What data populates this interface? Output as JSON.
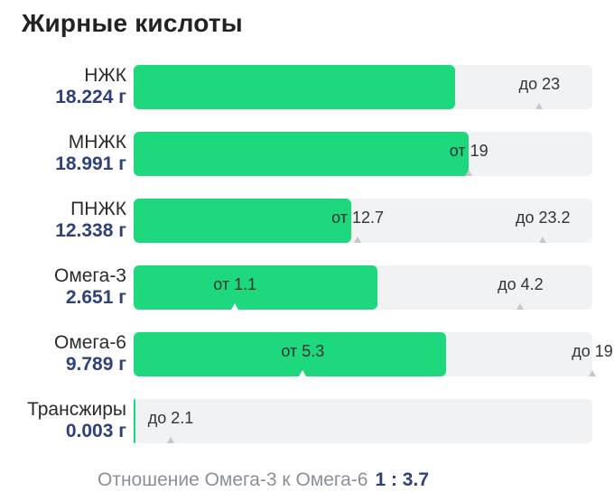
{
  "title": "Жирные кислоты",
  "colors": {
    "fill": "#1ed87e",
    "track": "#f1f2f4",
    "value_text": "#2f4178",
    "label_text": "#2b2b2b",
    "muted_text": "#8a8f98"
  },
  "scale_max": 26,
  "rows": [
    {
      "label": "НЖК",
      "value": "18.224 г",
      "amount": 18.224,
      "markers": [
        {
          "text": "до 23",
          "value": 23
        }
      ]
    },
    {
      "label": "МНЖК",
      "value": "18.991 г",
      "amount": 18.991,
      "markers": [
        {
          "text": "от 19",
          "value": 19
        }
      ]
    },
    {
      "label": "ПНЖК",
      "value": "12.338 г",
      "amount": 12.338,
      "markers": [
        {
          "text": "от 12.7",
          "value": 12.7
        },
        {
          "text": "до 23.2",
          "value": 23.2
        }
      ]
    },
    {
      "label": "Омега-3",
      "value": "2.651 г",
      "amount": 2.651,
      "scale_max": 4.98,
      "markers": [
        {
          "text": "от 1.1",
          "value": 1.1
        },
        {
          "text": "до 4.2",
          "value": 4.2
        }
      ]
    },
    {
      "label": "Омега-6",
      "value": "9.789 г",
      "amount": 9.789,
      "scale_max": 14.37,
      "markers": [
        {
          "text": "от 5.3",
          "value": 5.3
        },
        {
          "text": "до 19",
          "value": 19
        }
      ]
    },
    {
      "label": "Трансжиры",
      "value": "0.003 г",
      "amount": 0.003,
      "markers": [
        {
          "text": "до 2.1",
          "value": 2.1
        }
      ]
    }
  ],
  "ratio": {
    "label": "Отношение Омега-3 к Омега-6",
    "value": "1 : 3.7"
  }
}
